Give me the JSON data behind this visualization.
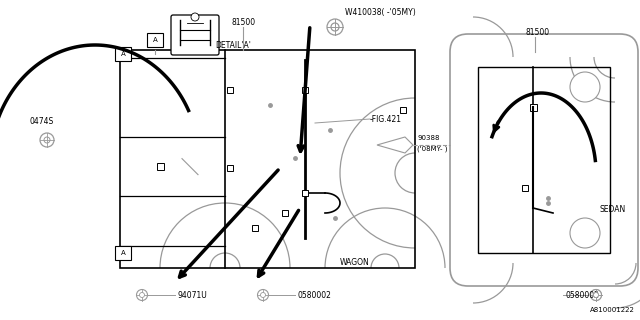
{
  "bg_color": "#ffffff",
  "line_color": "#000000",
  "gray_color": "#999999",
  "part_number": "A810001222",
  "labels": {
    "81500_left": "81500",
    "81500_right": "81500",
    "W410038": "W410038( -'05MY)",
    "FIG421": "-FIG.421",
    "90388": "90388\n('08MY- )",
    "0474S": "0474S",
    "94071U": "94071U",
    "0580002_left": "0580002",
    "0580002_right": "0580002",
    "WAGON": "WAGON",
    "SEDAN": "SEDAN",
    "DETAIL_A": "DETAIL'A'"
  }
}
